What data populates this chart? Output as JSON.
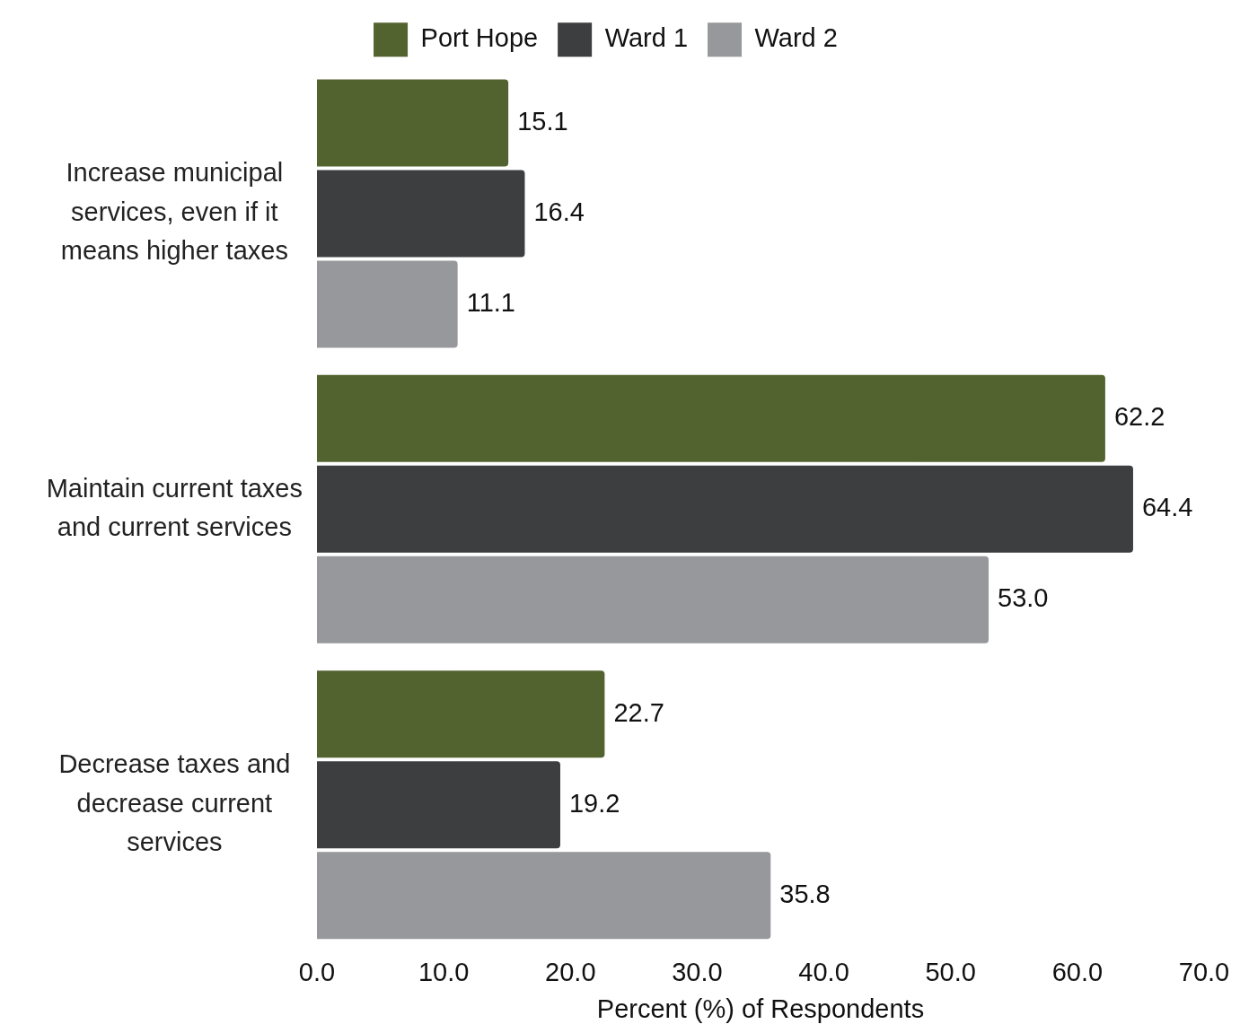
{
  "chart_data": {
    "type": "bar",
    "orientation": "horizontal",
    "xlabel": "Percent (%) of Respondents",
    "categories": [
      "Increase municipal services, even if it means higher taxes",
      "Maintain current taxes and current services",
      "Decrease taxes and decrease current services"
    ],
    "series": [
      {
        "name": "Port Hope",
        "color": "#536330",
        "values": [
          15.1,
          62.2,
          22.7
        ],
        "value_labels": [
          "15.1",
          "62.2",
          "22.7"
        ]
      },
      {
        "name": "Ward 1",
        "color": "#3d3e40",
        "values": [
          16.4,
          64.4,
          19.2
        ],
        "value_labels": [
          "16.4",
          "64.4",
          "19.2"
        ]
      },
      {
        "name": "Ward 2",
        "color": "#97989b",
        "values": [
          11.1,
          53.0,
          35.8
        ],
        "value_labels": [
          "11.1",
          "53.0",
          "35.8"
        ]
      }
    ],
    "xlim": [
      0,
      70
    ],
    "xticks": [
      {
        "value": 0,
        "label": "0.0"
      },
      {
        "value": 10,
        "label": "10.0"
      },
      {
        "value": 20,
        "label": "20.0"
      },
      {
        "value": 30,
        "label": "30.0"
      },
      {
        "value": 40,
        "label": "40.0"
      },
      {
        "value": 50,
        "label": "50.0"
      },
      {
        "value": 60,
        "label": "60.0"
      },
      {
        "value": 70,
        "label": "70.0"
      }
    ],
    "grid": false,
    "legend": "top"
  }
}
